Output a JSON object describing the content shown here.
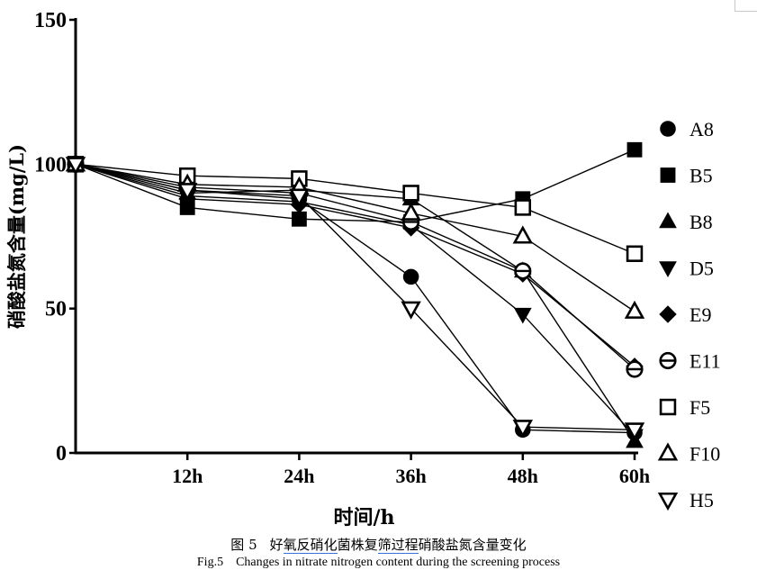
{
  "chart_data": {
    "type": "line",
    "xlabel": "时间/h",
    "ylabel": "硝酸盐氮含量(mg/L)",
    "categories": [
      "",
      "12h",
      "24h",
      "36h",
      "48h",
      "60h"
    ],
    "x": [
      0,
      12,
      24,
      36,
      48,
      60
    ],
    "ylim": [
      0,
      150
    ],
    "yticks": [
      0,
      50,
      100,
      150
    ],
    "grid": false,
    "legend_position": "right",
    "series": [
      {
        "name": "A8",
        "marker": "circle-filled",
        "values": [
          100,
          91,
          88,
          61,
          8,
          7
        ]
      },
      {
        "name": "B5",
        "marker": "square-filled",
        "values": [
          100,
          85,
          81,
          80,
          88,
          105
        ]
      },
      {
        "name": "B8",
        "marker": "triangle-up-filled",
        "values": [
          100,
          90,
          91,
          88,
          63,
          4
        ]
      },
      {
        "name": "D5",
        "marker": "triangle-down-filled",
        "values": [
          100,
          89,
          87,
          79,
          48,
          6
        ]
      },
      {
        "name": "E9",
        "marker": "diamond-filled",
        "values": [
          100,
          88,
          86,
          78,
          62,
          30
        ]
      },
      {
        "name": "E11",
        "marker": "circle-open",
        "values": [
          100,
          92,
          90,
          80,
          63,
          29
        ]
      },
      {
        "name": "F5",
        "marker": "square-open",
        "values": [
          100,
          96,
          95,
          90,
          85,
          69
        ]
      },
      {
        "name": "F10",
        "marker": "triangle-up-open",
        "values": [
          100,
          93,
          92,
          83,
          75,
          49
        ]
      },
      {
        "name": "H5",
        "marker": "triangle-down-open",
        "values": [
          100,
          91,
          89,
          50,
          9,
          8
        ]
      }
    ]
  },
  "caption": {
    "cn_fig": "图 5",
    "cn_parts": [
      "好",
      "氧反硝化",
      "菌株复",
      "筛过程",
      "硝酸盐氮含量变化"
    ],
    "en_fig": "Fig.5",
    "en_text": "Changes in nitrate nitrogen content during the screening process"
  }
}
